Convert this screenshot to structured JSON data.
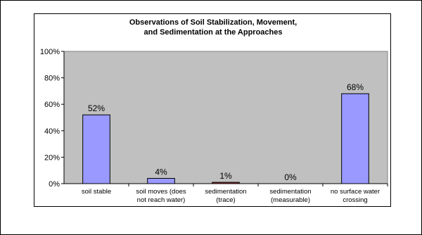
{
  "chart_data": {
    "type": "bar",
    "title": [
      "Observations of Soil Stabilization, Movement,",
      "and Sedimentation at the Approaches"
    ],
    "xlabel": "",
    "ylabel": "",
    "ylim": [
      0,
      100
    ],
    "y_ticks": [
      "0%",
      "20%",
      "40%",
      "60%",
      "80%",
      "100%"
    ],
    "y_tick_values": [
      0,
      20,
      40,
      60,
      80,
      100
    ],
    "categories": [
      [
        "soil stable"
      ],
      [
        "soil moves (does",
        "not reach water)"
      ],
      [
        "sedimentation",
        "(trace)"
      ],
      [
        "sedimentation",
        "(measurable)"
      ],
      [
        "no surface water",
        "crossing"
      ]
    ],
    "values": [
      52,
      4,
      1,
      0,
      68
    ],
    "value_labels": [
      "52%",
      "4%",
      "1%",
      "0%",
      "68%"
    ],
    "bar_colors": [
      "#9999ff",
      "#9999ff",
      "#993333",
      "#9999ff",
      "#9999ff"
    ],
    "grid": false,
    "legend": "none",
    "plot_background": "#c0c0c0"
  }
}
